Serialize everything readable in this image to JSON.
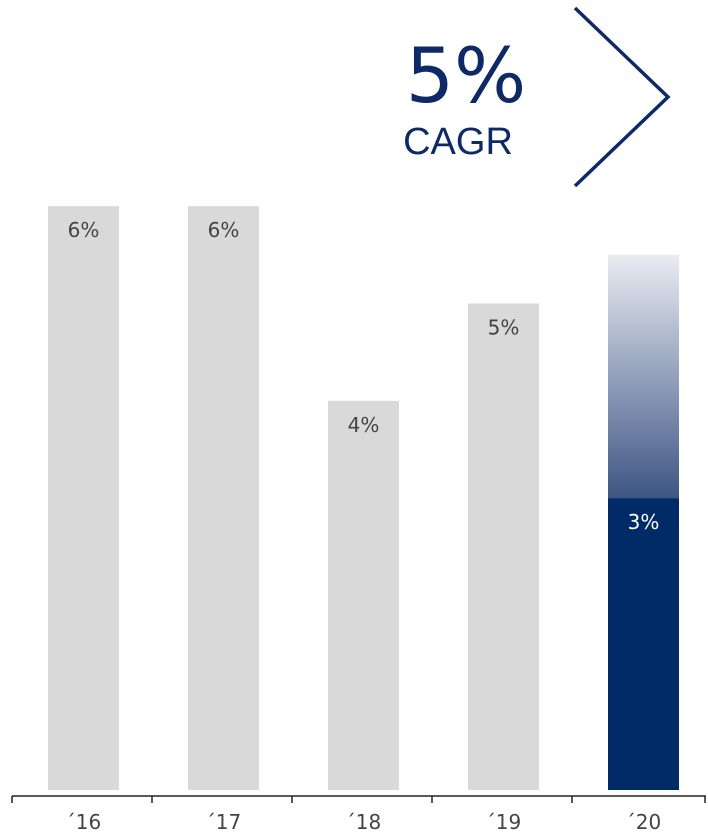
{
  "chart_data": {
    "type": "bar",
    "categories": [
      "´16",
      "´17",
      "´18",
      "´19",
      "´20"
    ],
    "values": [
      6,
      6,
      4,
      5,
      3
    ],
    "data_labels": [
      "6%",
      "6%",
      "4%",
      "5%",
      "3%"
    ],
    "projected_extension": {
      "category": "´20",
      "range": [
        3,
        5.5
      ]
    },
    "ylim": [
      0,
      6.5
    ],
    "grid": false,
    "legend": "none",
    "title": "",
    "xlabel": "",
    "ylabel": ""
  },
  "cagr": {
    "value": "5%",
    "label": "CAGR"
  },
  "colors": {
    "bar": "#d9d9d9",
    "highlight": "#002b67",
    "bar_label": "#444444",
    "highlight_label": "#ffffff",
    "axis": "#222222",
    "gradient_top": "#e9ecf2",
    "accent": "#0d2a66"
  }
}
